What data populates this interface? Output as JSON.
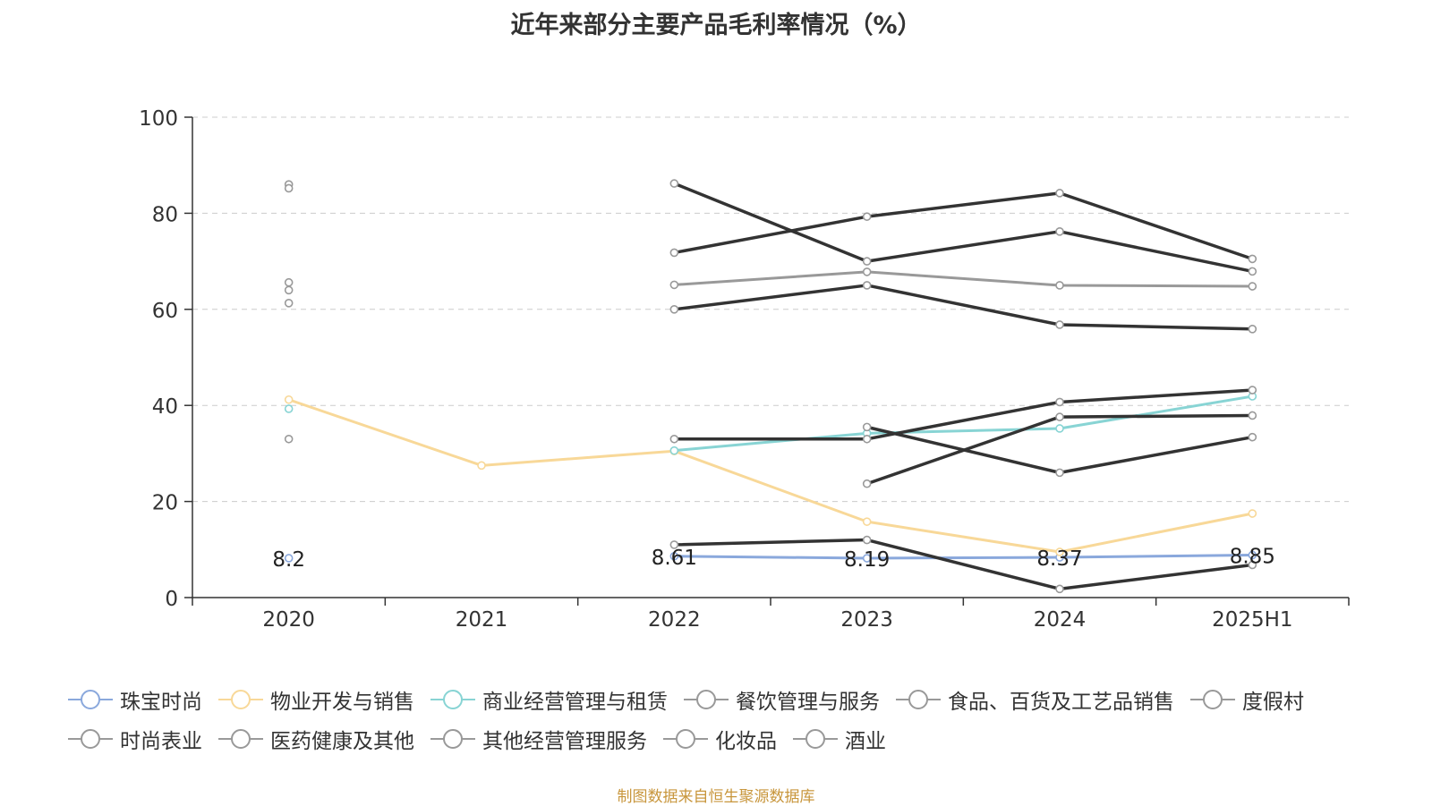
{
  "chart_data": {
    "type": "line",
    "title": "近年来部分主要产品毛利率情况（%）",
    "categories": [
      "2020",
      "2021",
      "2022",
      "2023",
      "2024",
      "2025H1"
    ],
    "ylim": [
      0,
      100
    ],
    "y_ticks": [
      "0",
      "20",
      "40",
      "60",
      "80",
      "100"
    ],
    "grid": true,
    "legend_position": "bottom",
    "series": [
      {
        "name": "珠宝时尚",
        "color": "#8aa8dc",
        "values": [
          8.2,
          null,
          8.61,
          8.19,
          8.37,
          8.85
        ],
        "labels": [
          "8.2",
          "",
          "8.61",
          "8.19",
          "8.37",
          "8.85"
        ]
      },
      {
        "name": "物业开发与销售",
        "color": "#f8d898",
        "values": [
          41.2,
          27.5,
          30.5,
          15.8,
          9.5,
          17.5
        ]
      },
      {
        "name": "商业经营管理与租赁",
        "color": "#88d4d4",
        "values": [
          39.3,
          null,
          30.6,
          34.2,
          35.2,
          41.9
        ]
      },
      {
        "name": "餐饮管理与服务",
        "color": "#333333",
        "values": [
          null,
          null,
          86.2,
          70.0,
          76.2,
          67.9
        ]
      },
      {
        "name": "食品、百货及工艺品销售",
        "color": "#333333",
        "values": [
          null,
          null,
          71.8,
          79.3,
          84.2,
          70.5
        ]
      },
      {
        "name": "度假村",
        "color": "#999999",
        "values": [
          65.6,
          null,
          65.1,
          67.8,
          65.0,
          64.8
        ]
      },
      {
        "name": "时尚表业",
        "color": "#333333",
        "values": [
          61.3,
          null,
          60.0,
          65.0,
          56.8,
          55.9
        ]
      },
      {
        "name": "医药健康及其他",
        "color": "#333333",
        "values": [
          33.0,
          null,
          33.0,
          33.0,
          40.7,
          43.2
        ]
      },
      {
        "name": "其他经营管理服务",
        "color": "#333333",
        "values": [
          null,
          null,
          null,
          23.7,
          37.6,
          37.9
        ]
      },
      {
        "name": "化妆品",
        "color": "#333333",
        "values": [
          null,
          null,
          null,
          35.5,
          26.0,
          33.4
        ]
      },
      {
        "name": "酒业",
        "color": "#333333",
        "values": [
          null,
          null,
          11.0,
          12.0,
          1.8,
          6.8
        ]
      },
      {
        "name": "",
        "color": "#999999",
        "values": [
          86.0,
          null,
          null,
          null,
          null,
          null
        ]
      },
      {
        "name": "",
        "color": "#999999",
        "values": [
          85.2,
          null,
          null,
          null,
          null,
          null
        ]
      },
      {
        "name": "",
        "color": "#999999",
        "values": [
          64.0,
          null,
          null,
          null,
          null,
          null
        ]
      }
    ]
  },
  "legend": {
    "rows": [
      [
        {
          "label": "珠宝时尚",
          "color": "#8aa8dc"
        },
        {
          "label": "物业开发与销售",
          "color": "#f8d898"
        },
        {
          "label": "商业经营管理与租赁",
          "color": "#88d4d4"
        },
        {
          "label": "餐饮管理与服务",
          "color": "#999999"
        },
        {
          "label": "食品、百货及工艺品销售",
          "color": "#999999"
        },
        {
          "label": "度假村",
          "color": "#999999"
        }
      ],
      [
        {
          "label": "时尚表业",
          "color": "#999999"
        },
        {
          "label": "医药健康及其他",
          "color": "#999999"
        },
        {
          "label": "其他经营管理服务",
          "color": "#999999"
        },
        {
          "label": "化妆品",
          "color": "#999999"
        },
        {
          "label": "酒业",
          "color": "#999999"
        }
      ]
    ]
  },
  "footer": {
    "source": "制图数据来自恒生聚源数据库"
  }
}
